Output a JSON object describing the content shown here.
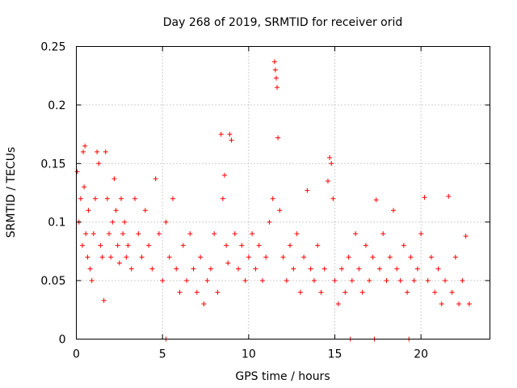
{
  "chart_data": {
    "type": "scatter",
    "title": "Day 268 of 2019, SRMTID for receiver orid",
    "xlabel": "GPS time / hours",
    "ylabel": "SRMTID / TECUs",
    "xlim": [
      0,
      24
    ],
    "ylim": [
      0,
      0.25
    ],
    "xticks": [
      0,
      5,
      10,
      15,
      20
    ],
    "xtick_labels": [
      "0",
      "5",
      "10",
      "15",
      "20"
    ],
    "yticks": [
      0,
      0.05,
      0.1,
      0.15,
      0.2,
      0.25
    ],
    "ytick_labels": [
      "0",
      "0.05",
      "0.1",
      "0.15",
      "0.2",
      "0.25"
    ],
    "grid": true,
    "marker": "+",
    "color": "#ff0000",
    "series": [
      {
        "name": "SRMTID",
        "x": [
          0.05,
          0.15,
          0.25,
          0.35,
          0.4,
          0.45,
          0.5,
          0.55,
          0.65,
          0.7,
          0.8,
          0.9,
          1.0,
          1.1,
          1.2,
          1.3,
          1.4,
          1.5,
          1.6,
          1.7,
          1.8,
          1.9,
          2.0,
          2.1,
          2.2,
          2.3,
          2.4,
          2.5,
          2.6,
          2.7,
          2.8,
          2.9,
          3.0,
          3.2,
          3.4,
          3.6,
          3.8,
          4.0,
          4.2,
          4.4,
          4.6,
          4.8,
          5.0,
          5.2,
          5.4,
          5.6,
          5.8,
          6.0,
          6.2,
          6.4,
          6.6,
          6.8,
          7.0,
          7.2,
          7.4,
          7.6,
          7.8,
          8.0,
          8.2,
          8.4,
          8.5,
          8.6,
          8.7,
          8.8,
          8.9,
          9.0,
          9.2,
          9.4,
          9.6,
          9.8,
          10.0,
          10.2,
          10.4,
          10.6,
          10.8,
          11.0,
          11.2,
          11.4,
          11.5,
          11.55,
          11.6,
          11.65,
          11.7,
          11.8,
          12.0,
          12.2,
          12.4,
          12.6,
          12.8,
          13.0,
          13.2,
          13.4,
          13.6,
          13.8,
          14.0,
          14.2,
          14.4,
          14.6,
          14.7,
          14.8,
          14.9,
          15.0,
          15.2,
          15.4,
          15.6,
          15.8,
          16.0,
          16.2,
          16.4,
          16.6,
          16.8,
          17.0,
          17.2,
          17.4,
          17.6,
          17.8,
          18.0,
          18.2,
          18.4,
          18.6,
          18.8,
          19.0,
          19.2,
          19.4,
          19.6,
          19.8,
          20.0,
          20.2,
          20.4,
          20.6,
          20.8,
          21.0,
          21.2,
          21.4,
          21.6,
          21.8,
          22.0,
          22.2,
          22.4,
          22.6,
          22.8,
          5.2,
          15.9,
          17.3,
          19.3
        ],
        "y": [
          0.143,
          0.1,
          0.12,
          0.08,
          0.16,
          0.13,
          0.165,
          0.09,
          0.07,
          0.11,
          0.06,
          0.05,
          0.09,
          0.12,
          0.16,
          0.15,
          0.08,
          0.07,
          0.033,
          0.16,
          0.12,
          0.09,
          0.07,
          0.1,
          0.137,
          0.11,
          0.08,
          0.065,
          0.12,
          0.09,
          0.1,
          0.07,
          0.08,
          0.06,
          0.12,
          0.09,
          0.07,
          0.11,
          0.08,
          0.06,
          0.137,
          0.09,
          0.05,
          0.1,
          0.07,
          0.12,
          0.06,
          0.04,
          0.08,
          0.05,
          0.09,
          0.06,
          0.04,
          0.07,
          0.03,
          0.05,
          0.06,
          0.09,
          0.04,
          0.175,
          0.12,
          0.14,
          0.08,
          0.065,
          0.175,
          0.17,
          0.09,
          0.06,
          0.08,
          0.05,
          0.07,
          0.09,
          0.06,
          0.08,
          0.05,
          0.07,
          0.1,
          0.12,
          0.237,
          0.23,
          0.223,
          0.215,
          0.172,
          0.11,
          0.07,
          0.05,
          0.08,
          0.06,
          0.09,
          0.04,
          0.07,
          0.127,
          0.06,
          0.05,
          0.08,
          0.04,
          0.06,
          0.135,
          0.155,
          0.15,
          0.12,
          0.05,
          0.03,
          0.06,
          0.04,
          0.07,
          0.05,
          0.09,
          0.06,
          0.04,
          0.08,
          0.05,
          0.07,
          0.119,
          0.06,
          0.09,
          0.05,
          0.07,
          0.11,
          0.06,
          0.05,
          0.08,
          0.04,
          0.07,
          0.05,
          0.06,
          0.09,
          0.121,
          0.05,
          0.07,
          0.04,
          0.06,
          0.03,
          0.05,
          0.122,
          0.04,
          0.07,
          0.03,
          0.05,
          0.088,
          0.03,
          0.0,
          0.0,
          0.0,
          0.0
        ]
      }
    ]
  }
}
